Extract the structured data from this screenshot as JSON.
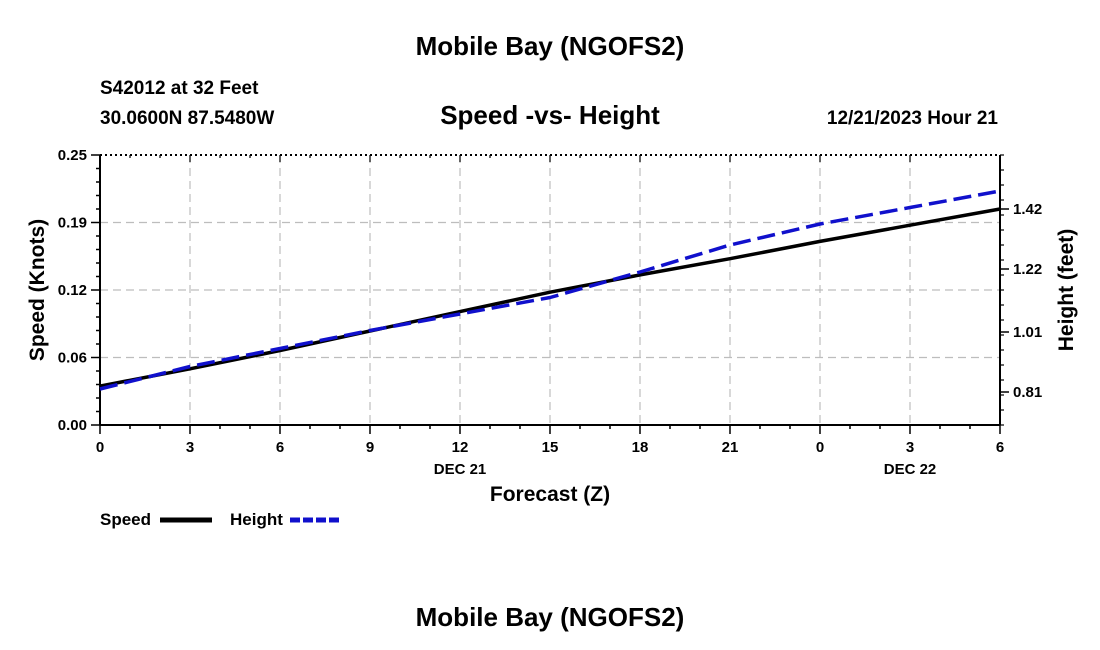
{
  "page": {
    "title": "Mobile Bay (NGOFS2)",
    "footer_title": "Mobile Bay (NGOFS2)",
    "station": "S42012 at 32 Feet",
    "coords": "30.0600N  87.5480W",
    "datetime": "12/21/2023 Hour 21"
  },
  "colors": {
    "speed": "#000000",
    "height": "#1010cc",
    "grid": "#bdbdbd",
    "axis": "#000000"
  },
  "chart_data": {
    "type": "line",
    "title": "Speed -vs- Height",
    "xlabel": "Forecast (Z)",
    "ylabel_left": "Speed (Knots)",
    "ylabel_right": "Height (feet)",
    "x": [
      0,
      3,
      6,
      9,
      12,
      15,
      18,
      21,
      24,
      27,
      30
    ],
    "x_tick_labels": [
      "0",
      "3",
      "6",
      "9",
      "12",
      "15",
      "18",
      "21",
      "0",
      "3",
      "6"
    ],
    "x_date_labels": [
      {
        "x": 12,
        "label": "DEC 21"
      },
      {
        "x": 27,
        "label": "DEC 22"
      }
    ],
    "xlim": [
      0,
      30
    ],
    "ylim_left": [
      0,
      0.25
    ],
    "left_ticks": [
      {
        "value": 0,
        "label": "0.00"
      },
      {
        "value": 0.0625,
        "label": "0.06"
      },
      {
        "value": 0.125,
        "label": "0.12"
      },
      {
        "value": 0.1875,
        "label": "0.19"
      },
      {
        "value": 0.25,
        "label": "0.25"
      }
    ],
    "ylim_right": [
      0.7,
      1.6
    ],
    "right_ticks": [
      {
        "value": 0.81,
        "label": "0.81"
      },
      {
        "value": 1.01,
        "label": "1.01"
      },
      {
        "value": 1.22,
        "label": "1.22"
      },
      {
        "value": 1.42,
        "label": "1.42"
      }
    ],
    "grid": true,
    "series": [
      {
        "name": "Speed",
        "axis": "left",
        "style": "solid",
        "x": [
          0,
          3,
          6,
          9,
          12,
          15,
          18,
          21,
          24,
          27,
          30
        ],
        "values": [
          0.036,
          0.052,
          0.069,
          0.087,
          0.105,
          0.123,
          0.139,
          0.154,
          0.17,
          0.185,
          0.2
        ]
      },
      {
        "name": "Height",
        "axis": "right",
        "style": "dashed",
        "x": [
          0,
          3,
          6,
          9,
          12,
          15,
          18,
          21,
          24,
          27,
          30
        ],
        "values": [
          0.82,
          0.895,
          0.955,
          1.015,
          1.07,
          1.125,
          1.21,
          1.3,
          1.37,
          1.425,
          1.48
        ]
      }
    ],
    "legend_position": "bottom-left"
  }
}
